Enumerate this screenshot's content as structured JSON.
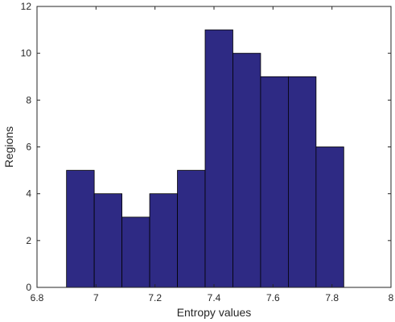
{
  "chart_data": {
    "type": "bar",
    "subtype": "histogram",
    "title": "",
    "xlabel": "Entropy values",
    "ylabel": "Regions",
    "xlim": [
      6.8,
      8
    ],
    "ylim": [
      0,
      12
    ],
    "xticks": [
      "6.8",
      "7",
      "7.2",
      "7.4",
      "7.6",
      "7.8",
      "8"
    ],
    "yticks": [
      "0",
      "2",
      "4",
      "6",
      "8",
      "10",
      "12"
    ],
    "bin_edges": [
      6.9,
      6.994,
      7.088,
      7.182,
      7.276,
      7.37,
      7.464,
      7.558,
      7.652,
      7.746,
      7.84
    ],
    "values": [
      5,
      4,
      3,
      4,
      5,
      11,
      10,
      9,
      9,
      6
    ],
    "bar_color": "#2e2a84",
    "grid": false,
    "legend": "none"
  }
}
